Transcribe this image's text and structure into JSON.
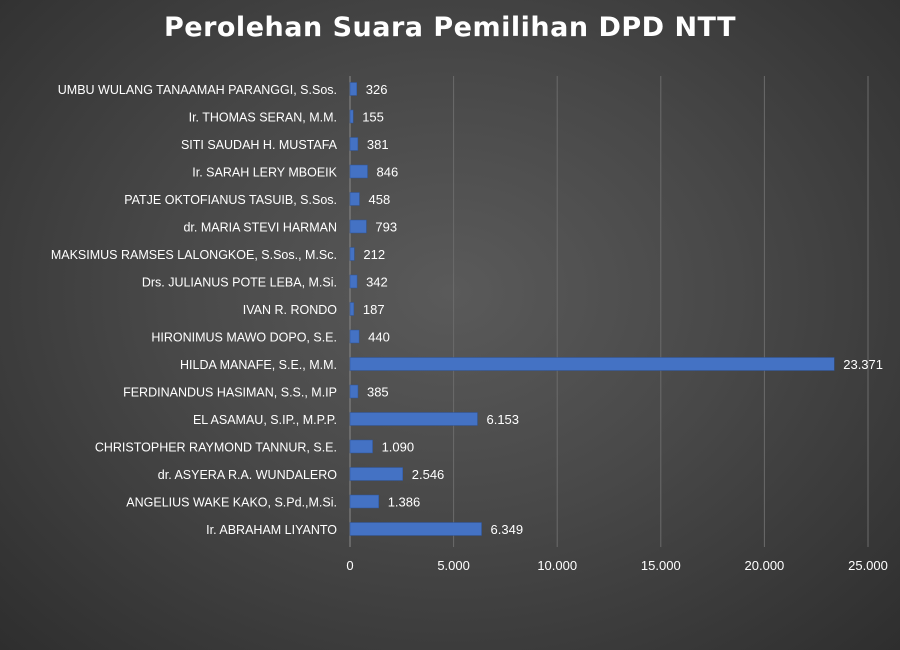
{
  "chart_data": {
    "type": "bar",
    "orientation": "horizontal",
    "title": "Perolehan Suara Pemilihan DPD NTT",
    "xlabel": "",
    "ylabel": "",
    "xlim": [
      0,
      25000
    ],
    "x_ticks": [
      0,
      5000,
      10000,
      15000,
      20000,
      25000
    ],
    "x_tick_labels": [
      "0",
      "5.000",
      "10.000",
      "15.000",
      "20.000",
      "25.000"
    ],
    "grid": "vertical",
    "bar_color": "#4472c4",
    "label_color": "#ffffff",
    "categories": [
      "UMBU WULANG TANAAMAH PARANGGI, S.Sos.",
      "Ir. THOMAS SERAN, M.M.",
      "SITI SAUDAH H. MUSTAFA",
      "Ir. SARAH LERY MBOEIK",
      "PATJE OKTOFIANUS TASUIB, S.Sos.",
      "dr. MARIA STEVI HARMAN",
      "MAKSIMUS RAMSES LALONGKOE, S.Sos., M.Sc.",
      "Drs. JULIANUS POTE LEBA, M.Si.",
      "IVAN R. RONDO",
      "HIRONIMUS MAWO DOPO, S.E.",
      "HILDA MANAFE, S.E., M.M.",
      "FERDINANDUS HASIMAN, S.S., M.IP",
      "EL ASAMAU, S.IP., M.P.P.",
      "CHRISTOPHER RAYMOND TANNUR, S.E.",
      "dr. ASYERA R.A. WUNDALERO",
      "ANGELIUS WAKE KAKO, S.Pd.,M.Si.",
      "Ir. ABRAHAM LIYANTO"
    ],
    "values": [
      326,
      155,
      381,
      846,
      458,
      793,
      212,
      342,
      187,
      440,
      23371,
      385,
      6153,
      1090,
      2546,
      1386,
      6349
    ],
    "value_labels": [
      "326",
      "155",
      "381",
      "846",
      "458",
      "793",
      "212",
      "342",
      "187",
      "440",
      "23.371",
      "385",
      "6.153",
      "1.090",
      "2.546",
      "1.386",
      "6.349"
    ]
  }
}
